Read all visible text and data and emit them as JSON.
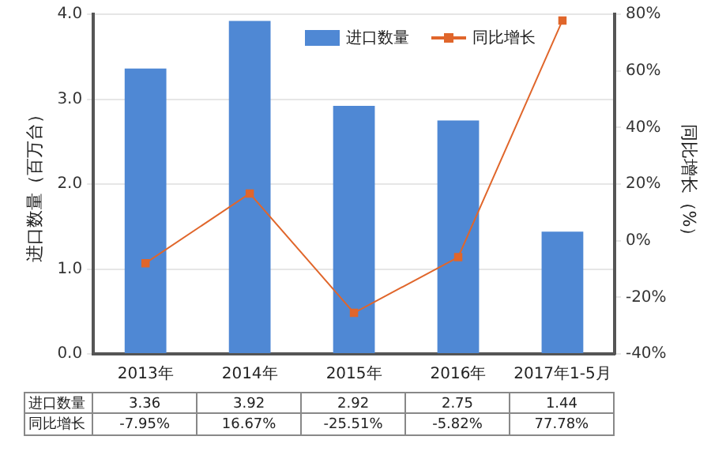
{
  "chart_data": {
    "type": "bar",
    "categories": [
      "2013年",
      "2014年",
      "2015年",
      "2016年",
      "2017年1-5月"
    ],
    "series": [
      {
        "name": "进口数量",
        "color": "#4f88d4",
        "values": [
          3.36,
          3.92,
          2.92,
          2.75,
          1.44
        ],
        "value_labels": [
          "3.36",
          "3.92",
          "2.92",
          "2.75",
          "1.44"
        ]
      },
      {
        "name": "同比增长",
        "type": "line",
        "axis": "y2",
        "color": "#e0662b",
        "marker": "square",
        "values": [
          -7.95,
          16.67,
          -25.51,
          -5.82,
          77.78
        ],
        "value_labels": [
          "-7.95%",
          "16.67%",
          "-25.51%",
          "-5.82%",
          "77.78%"
        ]
      }
    ],
    "ylabel": "进口数量（百万台）",
    "y2label": "同比增长（%）",
    "ylim": [
      0,
      4
    ],
    "yticks": [
      {
        "value": 0,
        "label": "0.0"
      },
      {
        "value": 1,
        "label": "1.0"
      },
      {
        "value": 2,
        "label": "2.0"
      },
      {
        "value": 3,
        "label": "3.0"
      },
      {
        "value": 4,
        "label": "4.0"
      }
    ],
    "y2lim": [
      -40,
      80
    ],
    "y2ticks": [
      {
        "value": -40,
        "label": "-40%"
      },
      {
        "value": -20,
        "label": "-20%"
      },
      {
        "value": 0,
        "label": "0%"
      },
      {
        "value": 20,
        "label": "20%"
      },
      {
        "value": 40,
        "label": "40%"
      },
      {
        "value": 60,
        "label": "60%"
      },
      {
        "value": 80,
        "label": "80%"
      }
    ],
    "grid": "y",
    "legend": "top right"
  }
}
